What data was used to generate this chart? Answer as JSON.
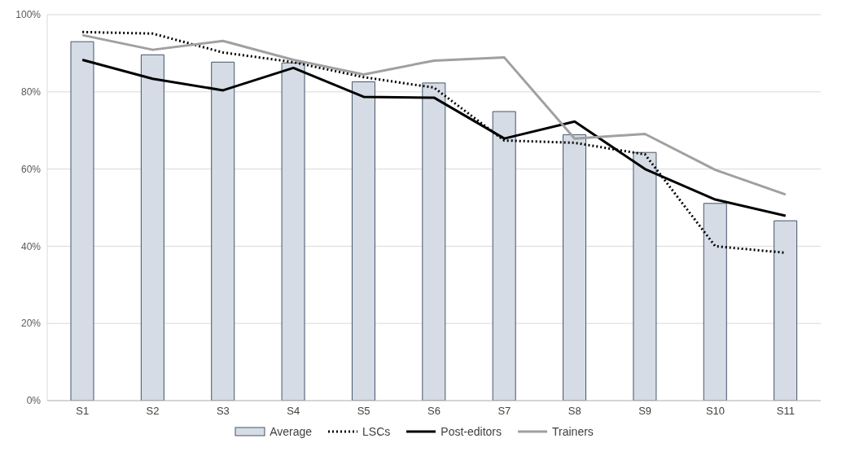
{
  "chart_data": {
    "type": "bar",
    "categories": [
      "S1",
      "S2",
      "S3",
      "S4",
      "S5",
      "S6",
      "S7",
      "S8",
      "S9",
      "S10",
      "S11"
    ],
    "series": [
      {
        "name": "Average",
        "color": "#d6dce5",
        "values": [
          93.0,
          89.6,
          87.7,
          87.5,
          82.6,
          82.3,
          74.9,
          68.9,
          64.3,
          51.1,
          46.6
        ]
      },
      {
        "name": "LSCs",
        "type": "line",
        "color": "#000000",
        "line_style": "dotted",
        "values": [
          95.5,
          95.1,
          90.2,
          87.7,
          83.8,
          81.1,
          67.4,
          66.8,
          63.8,
          40.0,
          38.3
        ]
      },
      {
        "name": "Post-editors",
        "type": "line",
        "color": "#000000",
        "line_style": "solid",
        "values": [
          88.3,
          83.4,
          80.4,
          86.2,
          78.7,
          78.5,
          67.9,
          72.3,
          60.0,
          52.1,
          47.9
        ]
      },
      {
        "name": "Trainers",
        "type": "line",
        "color": "#a0a0a0",
        "line_style": "solid",
        "values": [
          94.7,
          90.9,
          93.2,
          88.3,
          84.5,
          88.1,
          88.9,
          67.9,
          69.1,
          59.8,
          53.4
        ]
      }
    ],
    "ylim": [
      0,
      100
    ],
    "yticks": [
      {
        "value": 0,
        "label": "0%"
      },
      {
        "value": 20,
        "label": "20%"
      },
      {
        "value": 40,
        "label": "40%"
      },
      {
        "value": 60,
        "label": "60%"
      },
      {
        "value": 80,
        "label": "80%"
      },
      {
        "value": 100,
        "label": "100%"
      }
    ],
    "grid": "y",
    "legend": "bottom",
    "marker": "none"
  }
}
